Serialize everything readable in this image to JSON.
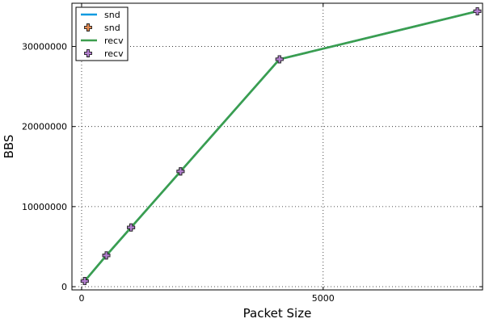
{
  "chart_data": {
    "type": "line",
    "title": "",
    "xlabel": "Packet Size",
    "ylabel": "BBS",
    "xlim": [
      -200,
      8300
    ],
    "ylim": [
      -400000,
      35400000
    ],
    "xticks": [
      0,
      5000
    ],
    "yticks": [
      0,
      10000000,
      20000000,
      30000000
    ],
    "grid": true,
    "legend_position": "top-left",
    "series": [
      {
        "name": "snd",
        "kind": "line",
        "color": "#0f9ae0",
        "x": [
          64,
          512,
          1024,
          2048,
          4096,
          8192
        ],
        "y": [
          700000,
          3900000,
          7400000,
          14400000,
          28400000,
          34400000
        ]
      },
      {
        "name": "snd",
        "kind": "marker",
        "color": "#e28a52",
        "x": [
          64,
          512,
          1024,
          2048,
          4096,
          8192
        ],
        "y": [
          700000,
          3900000,
          7400000,
          14400000,
          28400000,
          34400000
        ]
      },
      {
        "name": "recv",
        "kind": "line",
        "color": "#3c9e4d",
        "x": [
          64,
          512,
          1024,
          2048,
          4096,
          8192
        ],
        "y": [
          700000,
          3900000,
          7400000,
          14400000,
          28400000,
          34400000
        ]
      },
      {
        "name": "recv",
        "kind": "marker",
        "color": "#b37fd0",
        "x": [
          64,
          512,
          1024,
          2048,
          4096,
          8192
        ],
        "y": [
          700000,
          3900000,
          7400000,
          14400000,
          28400000,
          34400000
        ]
      }
    ]
  }
}
